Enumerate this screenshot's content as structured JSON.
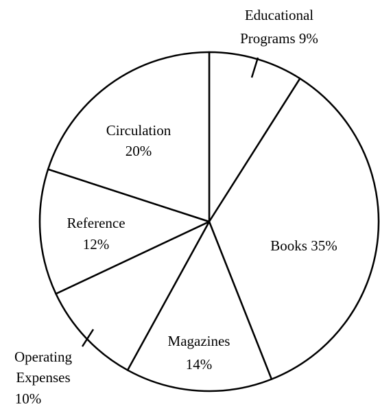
{
  "chart_data": {
    "type": "pie",
    "categories": [
      "Educational Programs",
      "Books",
      "Magazines",
      "Operating Expenses",
      "Reference",
      "Circulation"
    ],
    "values": [
      9,
      35,
      14,
      10,
      12,
      20
    ],
    "labels": {
      "educational": {
        "line1": "Educational",
        "line2": "Programs 9%"
      },
      "books": {
        "line1": "Books 35%"
      },
      "magazines": {
        "line1": "Magazines",
        "line2": "14%"
      },
      "operating": {
        "line1": "Operating",
        "line2": "Expenses",
        "line3": "10%"
      },
      "reference": {
        "line1": "Reference",
        "line2": "12%"
      },
      "circulation": {
        "line1": "Circulation",
        "line2": "20%"
      }
    },
    "start_angle": "top",
    "direction": "clockwise",
    "colors": {
      "fill": "#ffffff",
      "stroke": "#000000"
    }
  }
}
